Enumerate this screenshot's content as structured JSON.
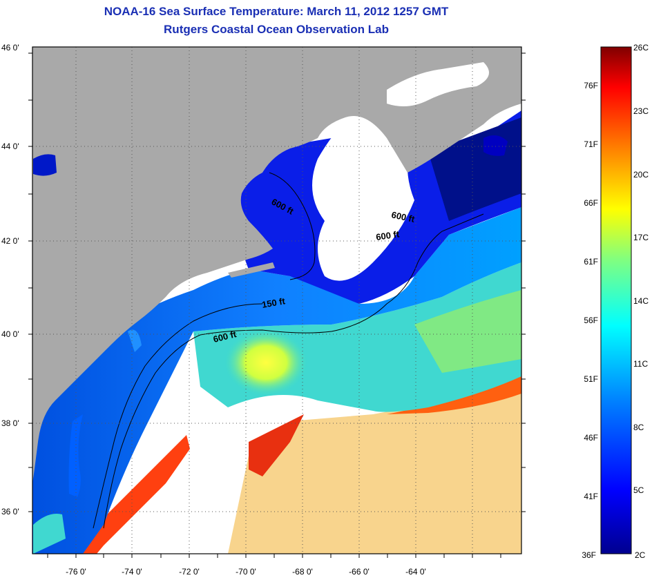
{
  "title": "NOAA-16 Sea Surface Temperature:  March 11, 2012 1257 GMT",
  "subtitle": "Rutgers Coastal Ocean Observation Lab",
  "lat_ticks": [
    "46 0'",
    "44 0'",
    "42 0'",
    "40 0'",
    "38 0'",
    "36 0'"
  ],
  "lon_ticks": [
    "-76 0'",
    "-74 0'",
    "-72 0'",
    "-70 0'",
    "-68 0'",
    "-66 0'",
    "-64 0'"
  ],
  "contours": [
    "600 ft",
    "600 ft",
    "600 ft",
    "150 ft",
    "600 ft"
  ],
  "colorbar": {
    "fahrenheit": [
      "76F",
      "71F",
      "66F",
      "61F",
      "56F",
      "51F",
      "46F",
      "41F",
      "36F"
    ],
    "celsius": [
      "26C",
      "23C",
      "20C",
      "17C",
      "14C",
      "11C",
      "8C",
      "5C",
      "2C"
    ],
    "colors": [
      "#00008f",
      "#0000ff",
      "#0080ff",
      "#00ffff",
      "#80ff80",
      "#ffff00",
      "#ff8000",
      "#ff0000",
      "#800000"
    ]
  },
  "colors": {
    "land": "#a9a9a9",
    "cloud": "#ffffff",
    "title": "#1a2fb4"
  }
}
